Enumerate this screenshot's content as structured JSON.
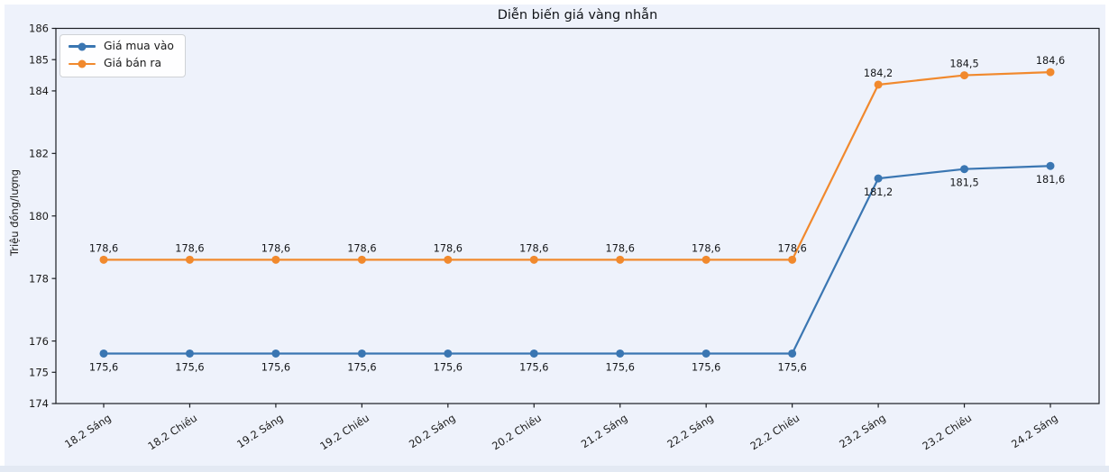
{
  "chart_data": {
    "type": "line",
    "title": "Diễn biến giá vàng nhẫn",
    "xlabel": "",
    "ylabel": "Triệu đồng/lượng",
    "categories": [
      "18.2 Sáng",
      "18.2 Chiều",
      "19.2 Sáng",
      "19.2 Chiều",
      "20.2 Sáng",
      "20.2 Chiều",
      "21.2 Sáng",
      "22.2 Sáng",
      "22.2 Chiều",
      "23.2 Sáng",
      "23.2 Chiều",
      "24.2 Sáng"
    ],
    "series": [
      {
        "name": "Giá mua vào",
        "color": "#3a76b2",
        "values": [
          175.6,
          175.6,
          175.6,
          175.6,
          175.6,
          175.6,
          175.6,
          175.6,
          175.6,
          181.2,
          181.5,
          181.6
        ],
        "labels": [
          "175,6",
          "175,6",
          "175,6",
          "175,6",
          "175,6",
          "175,6",
          "175,6",
          "175,6",
          "175,6",
          "181,2",
          "181,5",
          "181,6"
        ],
        "label_position": "below"
      },
      {
        "name": "Giá bán ra",
        "color": "#f1892d",
        "values": [
          178.6,
          178.6,
          178.6,
          178.6,
          178.6,
          178.6,
          178.6,
          178.6,
          178.6,
          184.2,
          184.5,
          184.6
        ],
        "labels": [
          "178,6",
          "178,6",
          "178,6",
          "178,6",
          "178,6",
          "178,6",
          "178,6",
          "178,6",
          "178,6",
          "184,2",
          "184,5",
          "184,6"
        ],
        "label_position": "above"
      }
    ],
    "y_ticks": [
      174,
      175,
      176,
      178,
      180,
      182,
      184,
      185,
      186
    ],
    "ylim": [
      174,
      186
    ],
    "grid": false,
    "legend_position": "upper-left",
    "background_color": "#eef2fb"
  }
}
